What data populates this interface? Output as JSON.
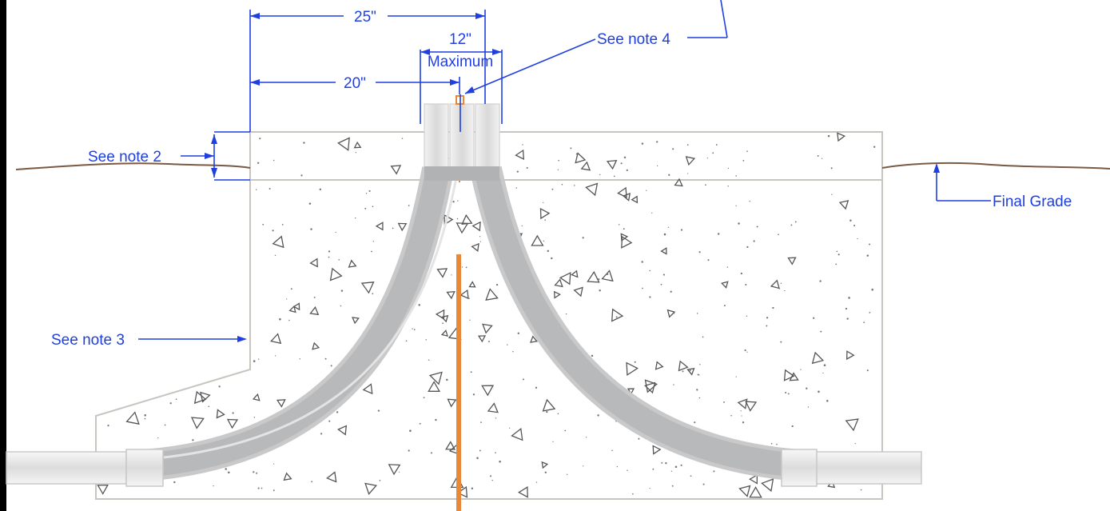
{
  "dimensions": {
    "overall_width": "25\"",
    "center_offset": "20\"",
    "stub_spacing_line1": "12\"",
    "stub_spacing_line2": "Maximum"
  },
  "callouts": {
    "note2": "See note 2",
    "note3": "See note 3",
    "note4": "See note 4",
    "final_grade": "Final Grade"
  },
  "colors": {
    "annotation": "#1f3fe0",
    "ground_line": "#7a5a43",
    "concrete_outline": "#c8c4c0",
    "conduit": "#b9bcbe",
    "ground_rod": "#e8893a"
  }
}
